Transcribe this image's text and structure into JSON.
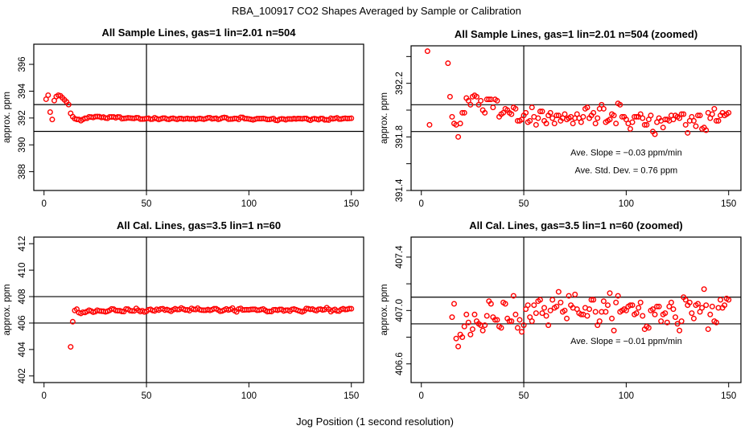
{
  "title": "RBA_100917  CO2 Shapes Averaged by Sample or Calibration",
  "xlabel": "Jog Position (1 second resolution)",
  "colors": {
    "points": "#ff0000",
    "axes": "#000000"
  },
  "datasets": {
    "sample": {
      "x": [
        1,
        2,
        3,
        4,
        5,
        6,
        7,
        8,
        9,
        10,
        11,
        12,
        13,
        14,
        15,
        16,
        17,
        18,
        19,
        20,
        21,
        22,
        23,
        24,
        25,
        26,
        27,
        28,
        29,
        30,
        31,
        32,
        33,
        34,
        35,
        36,
        37,
        38,
        39,
        40,
        41,
        42,
        43,
        44,
        45,
        46,
        47,
        48,
        49,
        50,
        51,
        52,
        53,
        54,
        55,
        56,
        57,
        58,
        59,
        60,
        61,
        62,
        63,
        64,
        65,
        66,
        67,
        68,
        69,
        70,
        71,
        72,
        73,
        74,
        75,
        76,
        77,
        78,
        79,
        80,
        81,
        82,
        83,
        84,
        85,
        86,
        87,
        88,
        89,
        90,
        91,
        92,
        93,
        94,
        95,
        96,
        97,
        98,
        99,
        100,
        101,
        102,
        103,
        104,
        105,
        106,
        107,
        108,
        109,
        110,
        111,
        112,
        113,
        114,
        115,
        116,
        117,
        118,
        119,
        120,
        121,
        122,
        123,
        124,
        125,
        126,
        127,
        128,
        129,
        130,
        131,
        132,
        133,
        134,
        135,
        136,
        137,
        138,
        139,
        140,
        141,
        142,
        143,
        144,
        145,
        146,
        147,
        148,
        149,
        150
      ],
      "y": [
        393.4,
        393.7,
        392.44,
        391.89,
        393.3,
        393.6,
        393.7,
        393.65,
        393.5,
        393.35,
        393.2,
        393.0,
        392.35,
        392.1,
        391.95,
        391.9,
        391.89,
        391.8,
        391.9,
        391.98,
        391.98,
        392.09,
        392.07,
        392.04,
        392.1,
        392.11,
        392.1,
        392.04,
        392.07,
        392.0,
        391.98,
        392.08,
        392.08,
        392.08,
        392.02,
        392.08,
        392.07,
        391.95,
        391.97,
        391.98,
        392.01,
        392.0,
        391.98,
        391.97,
        392.02,
        392.01,
        391.92,
        391.92,
        391.93,
        391.96,
        391.98,
        391.91,
        391.92,
        392.02,
        391.95,
        391.89,
        391.94,
        391.99,
        391.99,
        391.92,
        391.9,
        391.96,
        391.98,
        391.94,
        391.9,
        391.96,
        391.96,
        391.92,
        391.94,
        391.97,
        391.93,
        391.94,
        391.95,
        391.9,
        391.94,
        391.97,
        391.94,
        391.91,
        391.95,
        392.01,
        392.02,
        391.94,
        391.96,
        391.98,
        391.9,
        391.94,
        392.01,
        392.04,
        392.01,
        391.91,
        391.92,
        391.93,
        391.97,
        391.96,
        391.9,
        392.05,
        392.04,
        391.95,
        391.95,
        391.93,
        391.9,
        391.86,
        391.91,
        391.95,
        391.95,
        391.95,
        391.97,
        391.94,
        391.89,
        391.89,
        391.93,
        391.96,
        391.84,
        391.82,
        391.91,
        391.94,
        391.92,
        391.87,
        391.93,
        391.93,
        391.92,
        391.96,
        391.93,
        391.96,
        391.95,
        391.94,
        391.97,
        391.97,
        391.89,
        391.83,
        391.92,
        391.95,
        391.92,
        391.88,
        391.96,
        391.96,
        391.86,
        391.87,
        391.85,
        391.98,
        391.94,
        391.97,
        392.01,
        391.92,
        391.92,
        391.96,
        391.98,
        391.96,
        391.97,
        391.98
      ]
    },
    "cal": {
      "x": [
        13,
        14,
        15,
        16,
        17,
        18,
        19,
        20,
        21,
        22,
        23,
        24,
        25,
        26,
        27,
        28,
        29,
        30,
        31,
        32,
        33,
        34,
        35,
        36,
        37,
        38,
        39,
        40,
        41,
        42,
        43,
        44,
        45,
        46,
        47,
        48,
        49,
        50,
        51,
        52,
        53,
        54,
        55,
        56,
        57,
        58,
        59,
        60,
        61,
        62,
        63,
        64,
        65,
        66,
        67,
        68,
        69,
        70,
        71,
        72,
        73,
        74,
        75,
        76,
        77,
        78,
        79,
        80,
        81,
        82,
        83,
        84,
        85,
        86,
        87,
        88,
        89,
        90,
        91,
        92,
        93,
        94,
        95,
        96,
        97,
        98,
        99,
        100,
        101,
        102,
        103,
        104,
        105,
        106,
        107,
        108,
        109,
        110,
        111,
        112,
        113,
        114,
        115,
        116,
        117,
        118,
        119,
        120,
        121,
        122,
        123,
        124,
        125,
        126,
        127,
        128,
        129,
        130,
        131,
        132,
        133,
        134,
        135,
        136,
        137,
        138,
        139,
        140,
        141,
        142,
        143,
        144,
        145,
        146,
        147,
        148,
        149,
        150
      ],
      "y": [
        404.2,
        406.1,
        406.95,
        407.05,
        406.79,
        406.73,
        406.82,
        406.8,
        406.88,
        406.97,
        406.91,
        406.82,
        406.86,
        406.97,
        406.92,
        406.9,
        406.89,
        406.85,
        406.89,
        406.96,
        407.07,
        407.05,
        406.95,
        406.93,
        406.93,
        406.88,
        406.87,
        407.06,
        407.05,
        406.94,
        406.92,
        406.92,
        407.11,
        406.97,
        406.87,
        406.93,
        406.84,
        406.89,
        407.01,
        407.04,
        406.95,
        406.92,
        407.04,
        406.98,
        407.07,
        407.08,
        406.98,
        407.02,
        406.96,
        406.89,
        407.0,
        407.08,
        407.02,
        407.03,
        407.14,
        407.06,
        406.99,
        407.0,
        406.94,
        407.11,
        407.04,
        407.02,
        407.12,
        407.01,
        406.98,
        406.97,
        406.97,
        407.02,
        406.96,
        407.01,
        407.08,
        407.08,
        406.99,
        406.89,
        406.92,
        406.99,
        407.07,
        406.99,
        407.04,
        407.13,
        406.94,
        406.85,
        407.06,
        407.11,
        406.99,
        407.0,
        407.01,
        407.0,
        407.03,
        407.04,
        407.04,
        406.97,
        406.98,
        407.02,
        407.06,
        406.96,
        406.86,
        406.88,
        406.87,
        407.0,
        407.01,
        406.97,
        407.03,
        407.03,
        406.92,
        406.97,
        406.98,
        406.91,
        407.03,
        407.06,
        407.01,
        406.95,
        406.9,
        406.85,
        406.92,
        407.1,
        407.08,
        407.04,
        407.06,
        406.98,
        406.94,
        407.04,
        407.05,
        406.99,
        407.02,
        407.16,
        407.04,
        406.86,
        406.97,
        407.03,
        406.92,
        406.91,
        407.02,
        407.08,
        407.02,
        407.04,
        407.09,
        407.08
      ]
    }
  },
  "chart_data": [
    {
      "type": "scatter",
      "title": "All Sample Lines, gas=1 lin=2.01 n=504",
      "ylabel": "approx. ppm",
      "dataset": "sample",
      "xlim": [
        -5,
        156
      ],
      "ylim": [
        386.6,
        397.5
      ],
      "xticks": [
        0,
        50,
        100,
        150
      ],
      "xtick_labels": [
        "0",
        "50",
        "100",
        "150"
      ],
      "yticks": [
        388,
        390,
        392,
        394,
        396
      ],
      "ytick_labels": [
        "388",
        "390",
        "392",
        "394",
        "396"
      ],
      "hlines": [
        393,
        391
      ],
      "vlines": [
        50
      ],
      "annotations": [],
      "grid": false
    },
    {
      "type": "scatter",
      "title": "All Sample Lines, gas=1 lin=2.01 n=504 (zoomed)",
      "ylabel": "approx. ppm",
      "dataset": "sample",
      "xlim": [
        -5,
        156
      ],
      "ylim": [
        391.4,
        392.48
      ],
      "xticks": [
        0,
        50,
        100,
        150
      ],
      "xtick_labels": [
        "0",
        "50",
        "100",
        "150"
      ],
      "yticks": [
        391.4,
        391.6,
        391.8,
        392.0,
        392.2,
        392.4
      ],
      "ytick_labels": [
        "391.4",
        "",
        "391.8",
        "",
        "392.2",
        ""
      ],
      "hlines": [
        392.04,
        391.84
      ],
      "vlines": [
        50
      ],
      "annotations": [
        {
          "text": "Ave. Slope =  −0.03  ppm/min",
          "x": 100,
          "y": 391.66
        },
        {
          "text": "Ave. Std. Dev. =  0.76  ppm",
          "x": 100,
          "y": 391.53
        }
      ],
      "grid": false
    },
    {
      "type": "scatter",
      "title": "All Cal. Lines, gas=3.5 lin=1 n=60",
      "ylabel": "approx. ppm",
      "dataset": "cal",
      "xlim": [
        -5,
        156
      ],
      "ylim": [
        401.5,
        412.5
      ],
      "xticks": [
        0,
        50,
        100,
        150
      ],
      "xtick_labels": [
        "0",
        "50",
        "100",
        "150"
      ],
      "yticks": [
        402,
        404,
        406,
        408,
        410,
        412
      ],
      "ytick_labels": [
        "402",
        "404",
        "406",
        "408",
        "410",
        "412"
      ],
      "hlines": [
        408,
        406
      ],
      "vlines": [
        50
      ],
      "annotations": [],
      "grid": false
    },
    {
      "type": "scatter",
      "title": "All Cal. Lines, gas=3.5 lin=1 n=60 (zoomed)",
      "ylabel": "approx. ppm",
      "dataset": "cal",
      "xlim": [
        -5,
        156
      ],
      "ylim": [
        406.46,
        407.55
      ],
      "xticks": [
        0,
        50,
        100,
        150
      ],
      "xtick_labels": [
        "0",
        "50",
        "100",
        "150"
      ],
      "yticks": [
        406.6,
        406.8,
        407.0,
        407.2,
        407.4
      ],
      "ytick_labels": [
        "406.6",
        "",
        "407.0",
        "",
        "407.4"
      ],
      "hlines": [
        407.1,
        406.9
      ],
      "vlines": [
        50
      ],
      "annotations": [
        {
          "text": "Ave. Slope =  −0.01  ppm/min",
          "x": 100,
          "y": 406.75
        }
      ],
      "grid": false
    }
  ]
}
